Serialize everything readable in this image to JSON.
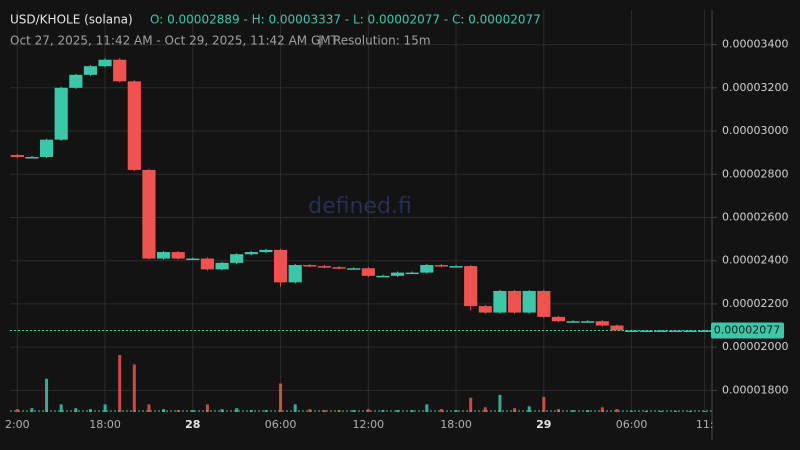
{
  "chart_data": {
    "type": "candlestick",
    "title": "USD/KHOLE (solana)",
    "ohlc_summary": "O: 0.00002889 - H: 0.00003337 - L: 0.00002077 - C: 0.00002077",
    "date_range": "Oct 27, 2025, 11:42 AM - Oct 29, 2025, 11:42 AM GMT",
    "separator": "|",
    "resolution": "Resolution: 15m",
    "watermark": "defined.fi",
    "up_color": "#3cc8a8",
    "down_color": "#ef5350",
    "categories": [
      "2:00",
      null,
      null,
      null,
      null,
      null,
      "18:00",
      null,
      null,
      null,
      null,
      null,
      "28",
      null,
      null,
      null,
      null,
      null,
      "06:00",
      null,
      null,
      null,
      null,
      null,
      "12:00",
      null,
      null,
      null,
      null,
      null,
      "18:00",
      null,
      null,
      null,
      null,
      null,
      "29",
      null,
      null,
      null,
      null,
      null,
      "06:00",
      null,
      null,
      null,
      null,
      "11:"
    ],
    "open": [
      2.889e-05,
      2.88e-05,
      2.88e-05,
      2.96e-05,
      3.2e-05,
      3.26e-05,
      3.3e-05,
      3.33e-05,
      3.23e-05,
      2.82e-05,
      2.41e-05,
      2.44e-05,
      2.41e-05,
      2.41e-05,
      2.36e-05,
      2.39e-05,
      2.43e-05,
      2.44e-05,
      2.45e-05,
      2.3e-05,
      2.38e-05,
      2.375e-05,
      2.37e-05,
      2.365e-05,
      2.365e-05,
      2.33e-05,
      2.33e-05,
      2.345e-05,
      2.345e-05,
      2.38e-05,
      2.375e-05,
      2.375e-05,
      2.19e-05,
      2.16e-05,
      2.26e-05,
      2.16e-05,
      2.26e-05,
      2.14e-05,
      2.12e-05,
      2.12e-05,
      2.12e-05,
      2.1e-05,
      2.077e-05,
      2.077e-05,
      2.077e-05,
      2.077e-05,
      2.077e-05,
      2.077e-05
    ],
    "high": [
      2.894e-05,
      2.885e-05,
      2.965e-05,
      3.205e-05,
      3.265e-05,
      3.305e-05,
      3.337e-05,
      3.337e-05,
      3.235e-05,
      2.825e-05,
      2.445e-05,
      2.445e-05,
      2.415e-05,
      2.415e-05,
      2.395e-05,
      2.435e-05,
      2.445e-05,
      2.455e-05,
      2.455e-05,
      2.385e-05,
      2.385e-05,
      2.38e-05,
      2.375e-05,
      2.37e-05,
      2.37e-05,
      2.335e-05,
      2.35e-05,
      2.35e-05,
      2.385e-05,
      2.385e-05,
      2.38e-05,
      2.38e-05,
      2.195e-05,
      2.265e-05,
      2.265e-05,
      2.265e-05,
      2.265e-05,
      2.145e-05,
      2.125e-05,
      2.125e-05,
      2.125e-05,
      2.105e-05,
      2.08e-05,
      2.08e-05,
      2.08e-05,
      2.08e-05,
      2.08e-05,
      2.08e-05
    ],
    "low": [
      2.875e-05,
      2.875e-05,
      2.875e-05,
      2.955e-05,
      3.195e-05,
      3.255e-05,
      3.295e-05,
      3.225e-05,
      2.815e-05,
      2.405e-05,
      2.405e-05,
      2.405e-05,
      2.405e-05,
      2.355e-05,
      2.355e-05,
      2.385e-05,
      2.425e-05,
      2.435e-05,
      2.28e-05,
      2.295e-05,
      2.37e-05,
      2.365e-05,
      2.36e-05,
      2.36e-05,
      2.325e-05,
      2.325e-05,
      2.325e-05,
      2.34e-05,
      2.34e-05,
      2.37e-05,
      2.37e-05,
      2.17e-05,
      2.155e-05,
      2.155e-05,
      2.155e-05,
      2.155e-05,
      2.135e-05,
      2.115e-05,
      2.115e-05,
      2.115e-05,
      2.095e-05,
      2.077e-05,
      2.077e-05,
      2.077e-05,
      2.077e-05,
      2.077e-05,
      2.077e-05,
      2.077e-05
    ],
    "close": [
      2.88e-05,
      2.88e-05,
      2.96e-05,
      3.2e-05,
      3.26e-05,
      3.3e-05,
      3.33e-05,
      3.23e-05,
      2.82e-05,
      2.41e-05,
      2.44e-05,
      2.41e-05,
      2.41e-05,
      2.36e-05,
      2.39e-05,
      2.43e-05,
      2.44e-05,
      2.45e-05,
      2.3e-05,
      2.38e-05,
      2.375e-05,
      2.37e-05,
      2.365e-05,
      2.365e-05,
      2.33e-05,
      2.33e-05,
      2.345e-05,
      2.345e-05,
      2.38e-05,
      2.375e-05,
      2.375e-05,
      2.19e-05,
      2.16e-05,
      2.26e-05,
      2.16e-05,
      2.26e-05,
      2.14e-05,
      2.12e-05,
      2.12e-05,
      2.12e-05,
      2.1e-05,
      2.077e-05,
      2.077e-05,
      2.077e-05,
      2.077e-05,
      2.077e-05,
      2.077e-05,
      2.077e-05
    ],
    "volume": [
      3,
      4,
      35,
      8,
      4,
      3,
      8,
      60,
      50,
      8,
      3,
      2,
      2,
      8,
      3,
      4,
      2,
      2,
      30,
      8,
      3,
      2,
      2,
      2,
      3,
      2,
      2,
      2,
      8,
      3,
      2,
      15,
      5,
      18,
      4,
      6,
      16,
      3,
      2,
      2,
      5,
      3,
      1,
      1,
      1,
      1,
      1,
      1
    ],
    "volume_lim": [
      0,
      100
    ],
    "last_price": {
      "value": 2.077e-05,
      "label": "0.00002077"
    },
    "ylim": [
      1.7e-05,
      3.56e-05
    ],
    "yticks": [
      {
        "value": 1.8e-05,
        "label": "0.00001800"
      },
      {
        "value": 2e-05,
        "label": "0.00002000"
      },
      {
        "value": 2.2e-05,
        "label": "0.00002200"
      },
      {
        "value": 2.4e-05,
        "label": "0.00002400"
      },
      {
        "value": 2.6e-05,
        "label": "0.00002600"
      },
      {
        "value": 2.8e-05,
        "label": "0.00002800"
      },
      {
        "value": 3e-05,
        "label": "0.00003000"
      },
      {
        "value": 3.2e-05,
        "label": "0.00003200"
      },
      {
        "value": 3.4e-05,
        "label": "0.00003400"
      }
    ],
    "grid": true
  }
}
